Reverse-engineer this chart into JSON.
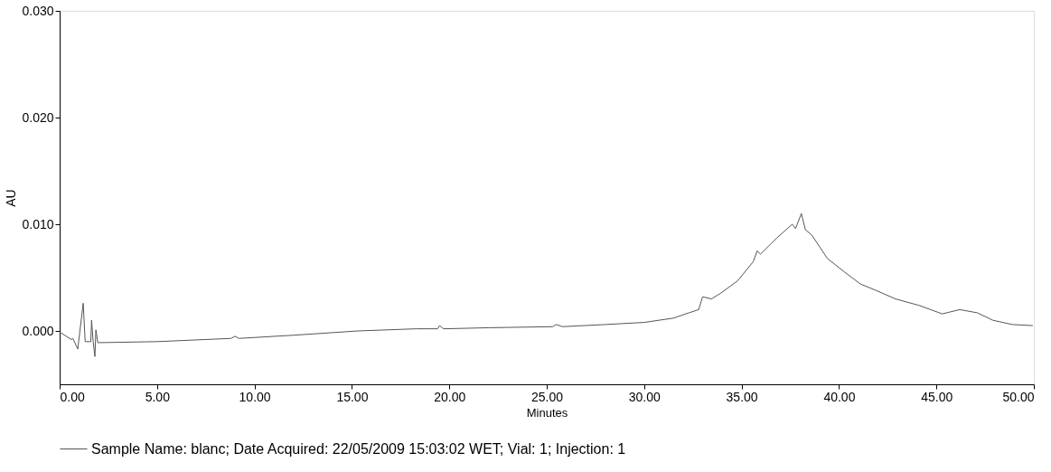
{
  "chart_data": {
    "type": "line",
    "xlabel": "Minutes",
    "ylabel": "AU",
    "legend": "bottom",
    "grid": false,
    "marker": "none",
    "line_style": "solid",
    "xlim": [
      0,
      50
    ],
    "ylim": [
      -0.005,
      0.03
    ],
    "xticks": [
      {
        "value": 0,
        "label": "0.00"
      },
      {
        "value": 5,
        "label": "5.00"
      },
      {
        "value": 10,
        "label": "10.00"
      },
      {
        "value": 15,
        "label": "15.00"
      },
      {
        "value": 20,
        "label": "20.00"
      },
      {
        "value": 25,
        "label": "25.00"
      },
      {
        "value": 30,
        "label": "30.00"
      },
      {
        "value": 35,
        "label": "35.00"
      },
      {
        "value": 40,
        "label": "40.00"
      },
      {
        "value": 45,
        "label": "45.00"
      },
      {
        "value": 50,
        "label": "50.00"
      }
    ],
    "yticks": [
      {
        "value": 0,
        "label": "0.000"
      },
      {
        "value": 0.01,
        "label": "0.010"
      },
      {
        "value": 0.02,
        "label": "0.020"
      },
      {
        "value": 0.03,
        "label": "0.030"
      }
    ],
    "series": [
      {
        "name": "Sample Name: blanc;   Date Acquired: 22/05/2009 15:03:02 WET;   Vial: 1; Injection: 1",
        "color": "#555555",
        "x": [
          0,
          0.6,
          0.68,
          0.93,
          1.21,
          1.31,
          1.6,
          1.64,
          1.72,
          1.81,
          1.86,
          1.96,
          5,
          8.8,
          9.0,
          9.2,
          12,
          15.3,
          18.3,
          19.4,
          19.5,
          19.7,
          22,
          25.3,
          25.5,
          25.8,
          28,
          30,
          31.5,
          32.3,
          32.8,
          33.0,
          33.45,
          33.9,
          34.8,
          35.6,
          35.8,
          35.97,
          36.8,
          37.6,
          37.77,
          38.07,
          38.27,
          38.6,
          39.4,
          40.3,
          41.1,
          41.9,
          42.9,
          44.1,
          45.3,
          46.2,
          47.1,
          47.9,
          48.9,
          49.95
        ],
        "values": [
          -0.0001,
          -0.0008,
          -0.0007,
          -0.0017,
          0.0026,
          -0.001,
          -0.001,
          0.001,
          -0.001,
          -0.0024,
          0.0001,
          -0.0011,
          -0.001,
          -0.0007,
          -0.0005,
          -0.0007,
          -0.0004,
          0.0,
          0.0002,
          0.0002,
          0.0005,
          0.0002,
          0.0003,
          0.0004,
          0.0006,
          0.0004,
          0.0006,
          0.0008,
          0.0012,
          0.0017,
          0.002,
          0.0032,
          0.003,
          0.0035,
          0.0047,
          0.0065,
          0.0075,
          0.0072,
          0.0087,
          0.01,
          0.0096,
          0.011,
          0.0095,
          0.009,
          0.0068,
          0.0055,
          0.0044,
          0.0038,
          0.003,
          0.0024,
          0.0016,
          0.002,
          0.0017,
          0.001,
          0.0006,
          0.0005
        ]
      }
    ]
  }
}
